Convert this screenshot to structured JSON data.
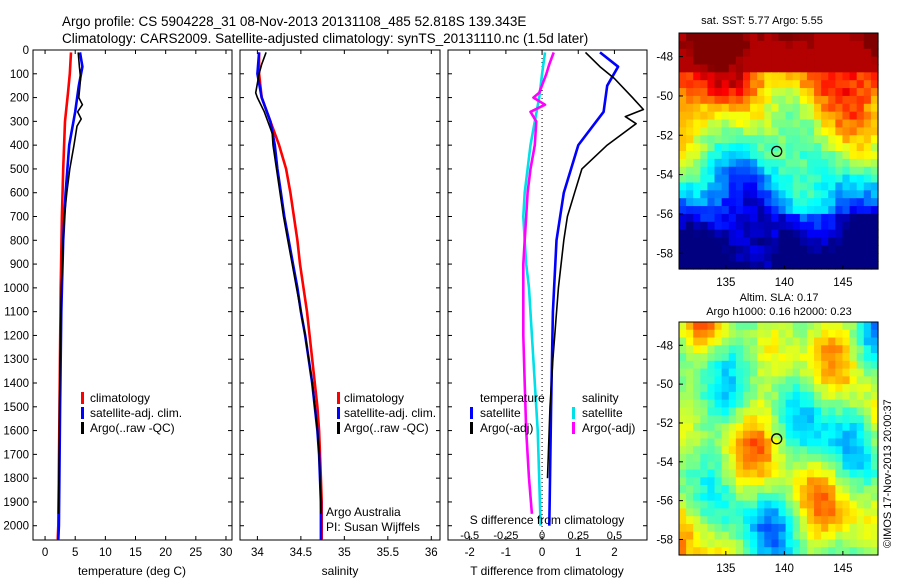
{
  "header": {
    "line1": "Argo profile: CS 5904228_31 08-Nov-2013 20131108_485 52.818S 139.343E",
    "line2": "Climatology: CARS2009. Satellite-adjusted climatology: synTS_20131110.nc (1.5d later)"
  },
  "colors": {
    "climatology": "#ff0000",
    "satellite": "#0000ff",
    "argo": "#000000",
    "cyan": "#00e0e8",
    "magenta": "#ff00ff"
  },
  "depth_ticks": [
    0,
    100,
    200,
    300,
    400,
    500,
    600,
    700,
    800,
    900,
    1000,
    1100,
    1200,
    1300,
    1400,
    1500,
    1600,
    1700,
    1800,
    1900,
    2000
  ],
  "chart_data": [
    {
      "type": "line",
      "id": "temperature",
      "xlabel": "temperature (deg C)",
      "xticks": [
        0,
        5,
        10,
        15,
        20,
        25,
        30
      ],
      "xlim": [
        -2,
        31
      ],
      "ylim": [
        2060,
        0
      ],
      "legend": [
        "climatology",
        "satellite-adj. clim.",
        "Argo(..raw -QC)"
      ],
      "series": [
        {
          "name": "climatology",
          "color_key": "climatology",
          "points": [
            [
              4.3,
              10
            ],
            [
              4.1,
              100
            ],
            [
              3.8,
              180
            ],
            [
              3.3,
              300
            ],
            [
              3.0,
              500
            ],
            [
              2.8,
              700
            ],
            [
              2.6,
              1000
            ],
            [
              2.4,
              1500
            ],
            [
              2.2,
              2000
            ],
            [
              2.1,
              2060
            ]
          ]
        },
        {
          "name": "satellite-adj. clim.",
          "color_key": "satellite",
          "points": [
            [
              5.8,
              10
            ],
            [
              6.2,
              70
            ],
            [
              5.6,
              150
            ],
            [
              5.0,
              260
            ],
            [
              4.0,
              400
            ],
            [
              3.4,
              600
            ],
            [
              3.0,
              800
            ],
            [
              2.7,
              1100
            ],
            [
              2.5,
              1500
            ],
            [
              2.3,
              2000
            ],
            [
              2.2,
              2060
            ]
          ]
        },
        {
          "name": "Argo(..raw -QC)",
          "color_key": "argo",
          "points": [
            [
              5.5,
              10
            ],
            [
              5.7,
              70
            ],
            [
              5.9,
              120
            ],
            [
              5.6,
              200
            ],
            [
              6.2,
              230
            ],
            [
              5.4,
              260
            ],
            [
              6.0,
              290
            ],
            [
              5.3,
              320
            ],
            [
              4.8,
              400
            ],
            [
              4.1,
              500
            ],
            [
              3.6,
              600
            ],
            [
              3.2,
              700
            ],
            [
              3.0,
              800
            ],
            [
              2.9,
              900
            ],
            [
              2.7,
              1000
            ],
            [
              2.5,
              1300
            ],
            [
              2.4,
              1500
            ],
            [
              2.3,
              1800
            ],
            [
              2.2,
              1950
            ]
          ]
        }
      ]
    },
    {
      "type": "line",
      "id": "salinity",
      "xlabel": "salinity",
      "xticks": [
        34,
        34.5,
        35,
        35.5,
        36
      ],
      "xlim": [
        33.8,
        36.1
      ],
      "ylim": [
        2060,
        0
      ],
      "legend": [
        "climatology",
        "satellite-adj. clim.",
        "Argo(..raw -QC)"
      ],
      "credit1": "Argo Australia",
      "credit2": "PI: Susan Wijffels",
      "series": [
        {
          "name": "climatology",
          "color_key": "climatology",
          "points": [
            [
              34.02,
              10
            ],
            [
              34.02,
              100
            ],
            [
              34.05,
              200
            ],
            [
              34.15,
              300
            ],
            [
              34.25,
              400
            ],
            [
              34.33,
              500
            ],
            [
              34.38,
              600
            ],
            [
              34.42,
              700
            ],
            [
              34.46,
              800
            ],
            [
              34.49,
              900
            ],
            [
              34.53,
              1000
            ],
            [
              34.57,
              1100
            ],
            [
              34.6,
              1200
            ],
            [
              34.63,
              1300
            ],
            [
              34.66,
              1400
            ],
            [
              34.69,
              1500
            ],
            [
              34.71,
              1600
            ],
            [
              34.72,
              1700
            ],
            [
              34.73,
              1800
            ],
            [
              34.74,
              1900
            ],
            [
              34.74,
              2060
            ]
          ]
        },
        {
          "name": "satellite-adj. clim.",
          "color_key": "satellite",
          "points": [
            [
              34.02,
              10
            ],
            [
              34.0,
              100
            ],
            [
              34.05,
              200
            ],
            [
              34.15,
              300
            ],
            [
              34.2,
              400
            ],
            [
              34.23,
              500
            ],
            [
              34.27,
              600
            ],
            [
              34.31,
              700
            ],
            [
              34.36,
              800
            ],
            [
              34.41,
              900
            ],
            [
              34.46,
              1000
            ],
            [
              34.5,
              1100
            ],
            [
              34.55,
              1200
            ],
            [
              34.59,
              1300
            ],
            [
              34.63,
              1400
            ],
            [
              34.66,
              1500
            ],
            [
              34.69,
              1600
            ],
            [
              34.71,
              1700
            ],
            [
              34.72,
              1800
            ],
            [
              34.73,
              1900
            ],
            [
              34.73,
              2060
            ]
          ]
        },
        {
          "name": "Argo(..raw -QC)",
          "color_key": "argo",
          "points": [
            [
              34.1,
              10
            ],
            [
              34.05,
              60
            ],
            [
              34.02,
              100
            ],
            [
              33.98,
              180
            ],
            [
              34.0,
              200
            ],
            [
              34.08,
              260
            ],
            [
              34.12,
              300
            ],
            [
              34.17,
              350
            ],
            [
              34.18,
              400
            ],
            [
              34.22,
              500
            ],
            [
              34.26,
              600
            ],
            [
              34.3,
              700
            ],
            [
              34.35,
              800
            ],
            [
              34.4,
              900
            ],
            [
              34.45,
              1000
            ],
            [
              34.5,
              1100
            ],
            [
              34.55,
              1200
            ],
            [
              34.59,
              1300
            ],
            [
              34.63,
              1400
            ],
            [
              34.66,
              1500
            ],
            [
              34.69,
              1600
            ],
            [
              34.71,
              1700
            ],
            [
              34.72,
              1800
            ],
            [
              34.73,
              1950
            ]
          ]
        }
      ]
    },
    {
      "type": "line",
      "id": "difference",
      "xlabel": "T difference from climatology",
      "xticks": [
        -2,
        -1,
        0,
        1,
        2
      ],
      "xticklabels": [
        "-2",
        "-1",
        "0",
        "1",
        "2"
      ],
      "xlim": [
        -2.6,
        2.9
      ],
      "top_xlabel": "S difference from climatology",
      "top_xticks": [
        -0.5,
        -0.25,
        0,
        0.25,
        0.5
      ],
      "top_xticklabels": [
        "-0.5",
        "-0.25",
        "0",
        "0.25",
        "0.5"
      ],
      "top_xlim": [
        -0.65,
        0.725
      ],
      "ylim": [
        2060,
        0
      ],
      "legend_t_title": "temperature",
      "legend_s_title": "salinity",
      "legend_t": [
        "satellite",
        "Argo(-adj)"
      ],
      "legend_s": [
        "satellite",
        "Argo(-adj)"
      ],
      "series": [
        {
          "name": "satellite",
          "axis": "T",
          "color_key": "satellite",
          "points": [
            [
              1.6,
              10
            ],
            [
              2.1,
              70
            ],
            [
              1.8,
              150
            ],
            [
              1.7,
              260
            ],
            [
              1.0,
              400
            ],
            [
              0.6,
              600
            ],
            [
              0.4,
              800
            ],
            [
              0.3,
              1100
            ],
            [
              0.25,
              1500
            ],
            [
              0.2,
              2000
            ]
          ]
        },
        {
          "name": "Argo(-adj)",
          "axis": "T",
          "color_key": "argo",
          "points": [
            [
              1.2,
              10
            ],
            [
              1.6,
              70
            ],
            [
              2.0,
              120
            ],
            [
              2.5,
              200
            ],
            [
              2.8,
              250
            ],
            [
              2.3,
              280
            ],
            [
              2.6,
              310
            ],
            [
              1.8,
              400
            ],
            [
              1.1,
              500
            ],
            [
              0.9,
              600
            ],
            [
              0.7,
              700
            ],
            [
              0.6,
              800
            ],
            [
              0.45,
              1000
            ],
            [
              0.3,
              1300
            ],
            [
              0.22,
              1500
            ],
            [
              0.15,
              1800
            ]
          ]
        },
        {
          "name": "satellite",
          "axis": "S",
          "color_key": "cyan",
          "points": [
            [
              0.02,
              10
            ],
            [
              0.0,
              100
            ],
            [
              -0.02,
              200
            ],
            [
              -0.05,
              300
            ],
            [
              -0.08,
              400
            ],
            [
              -0.1,
              500
            ],
            [
              -0.12,
              600
            ],
            [
              -0.13,
              700
            ],
            [
              -0.12,
              800
            ],
            [
              -0.11,
              900
            ],
            [
              -0.09,
              1000
            ],
            [
              -0.07,
              1200
            ],
            [
              -0.05,
              1400
            ],
            [
              -0.03,
              1600
            ],
            [
              -0.02,
              1800
            ],
            [
              -0.01,
              2000
            ]
          ]
        },
        {
          "name": "Argo(-adj)",
          "axis": "S",
          "color_key": "magenta",
          "points": [
            [
              0.08,
              10
            ],
            [
              0.05,
              60
            ],
            [
              0.03,
              100
            ],
            [
              -0.02,
              180
            ],
            [
              -0.06,
              200
            ],
            [
              0.02,
              230
            ],
            [
              -0.08,
              260
            ],
            [
              -0.04,
              300
            ],
            [
              -0.05,
              400
            ],
            [
              -0.08,
              500
            ],
            [
              -0.1,
              600
            ],
            [
              -0.11,
              700
            ],
            [
              -0.12,
              800
            ],
            [
              -0.13,
              900
            ],
            [
              -0.13,
              1000
            ],
            [
              -0.13,
              1200
            ],
            [
              -0.12,
              1400
            ],
            [
              -0.11,
              1600
            ],
            [
              -0.09,
              1800
            ],
            [
              -0.07,
              1950
            ]
          ]
        }
      ]
    },
    {
      "type": "heatmap",
      "id": "sst-map",
      "title": "sat. SST: 5.77  Argo: 5.55",
      "xticks": [
        135,
        140,
        145
      ],
      "yticks": [
        -48,
        -50,
        -52,
        -54,
        -56,
        -58
      ],
      "xlim": [
        131.0,
        148.0
      ],
      "ylim": [
        -58.8,
        -46.8
      ],
      "marker": [
        139.343,
        -52.818
      ]
    },
    {
      "type": "heatmap",
      "id": "sla-map",
      "title_line1": "Altim. SLA: 0.17",
      "title_line2": "Argo h1000: 0.16  h2000: 0.23",
      "xticks": [
        135,
        140,
        145
      ],
      "yticks": [
        -48,
        -50,
        -52,
        -54,
        -56,
        -58
      ],
      "xlim": [
        131.0,
        148.0
      ],
      "ylim": [
        -58.8,
        -46.8
      ],
      "marker": [
        139.343,
        -52.818
      ]
    }
  ],
  "side_stamp": "©IMOS 17-Nov-2013 20:00:37"
}
